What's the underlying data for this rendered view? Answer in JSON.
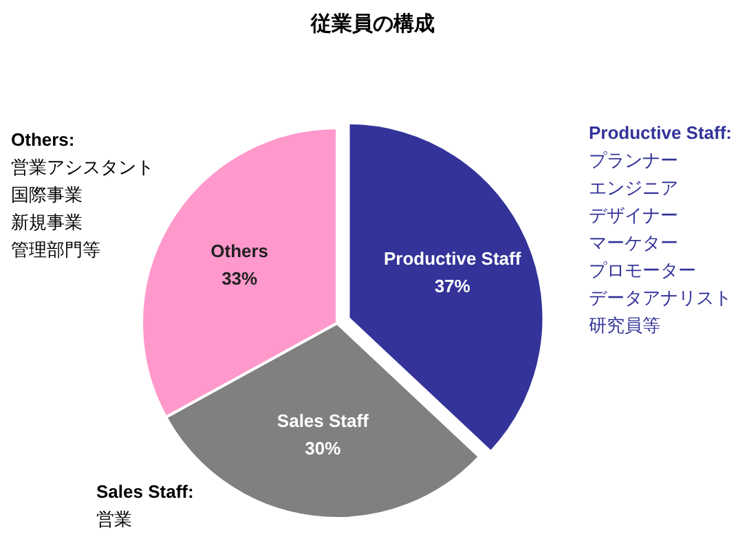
{
  "chart_data": {
    "type": "pie",
    "title": "従業員の構成",
    "categories": [
      "Productive Staff",
      "Sales Staff",
      "Others"
    ],
    "values": [
      37,
      30,
      33
    ],
    "colors": [
      "#333399",
      "#808080",
      "#ff99cc"
    ],
    "value_labels": [
      "37%",
      "30%",
      "33%"
    ],
    "annotations": [
      "Others:",
      "営業アシスタント",
      "国際事業",
      "新規事業",
      "管理部門等",
      "Productive Staff:",
      "プランナー",
      "エンジニア",
      "デザイナー",
      "マーケター",
      "プロモーター",
      "データアナリスト",
      "研究員等",
      "Sales Staff:",
      "営業"
    ]
  }
}
